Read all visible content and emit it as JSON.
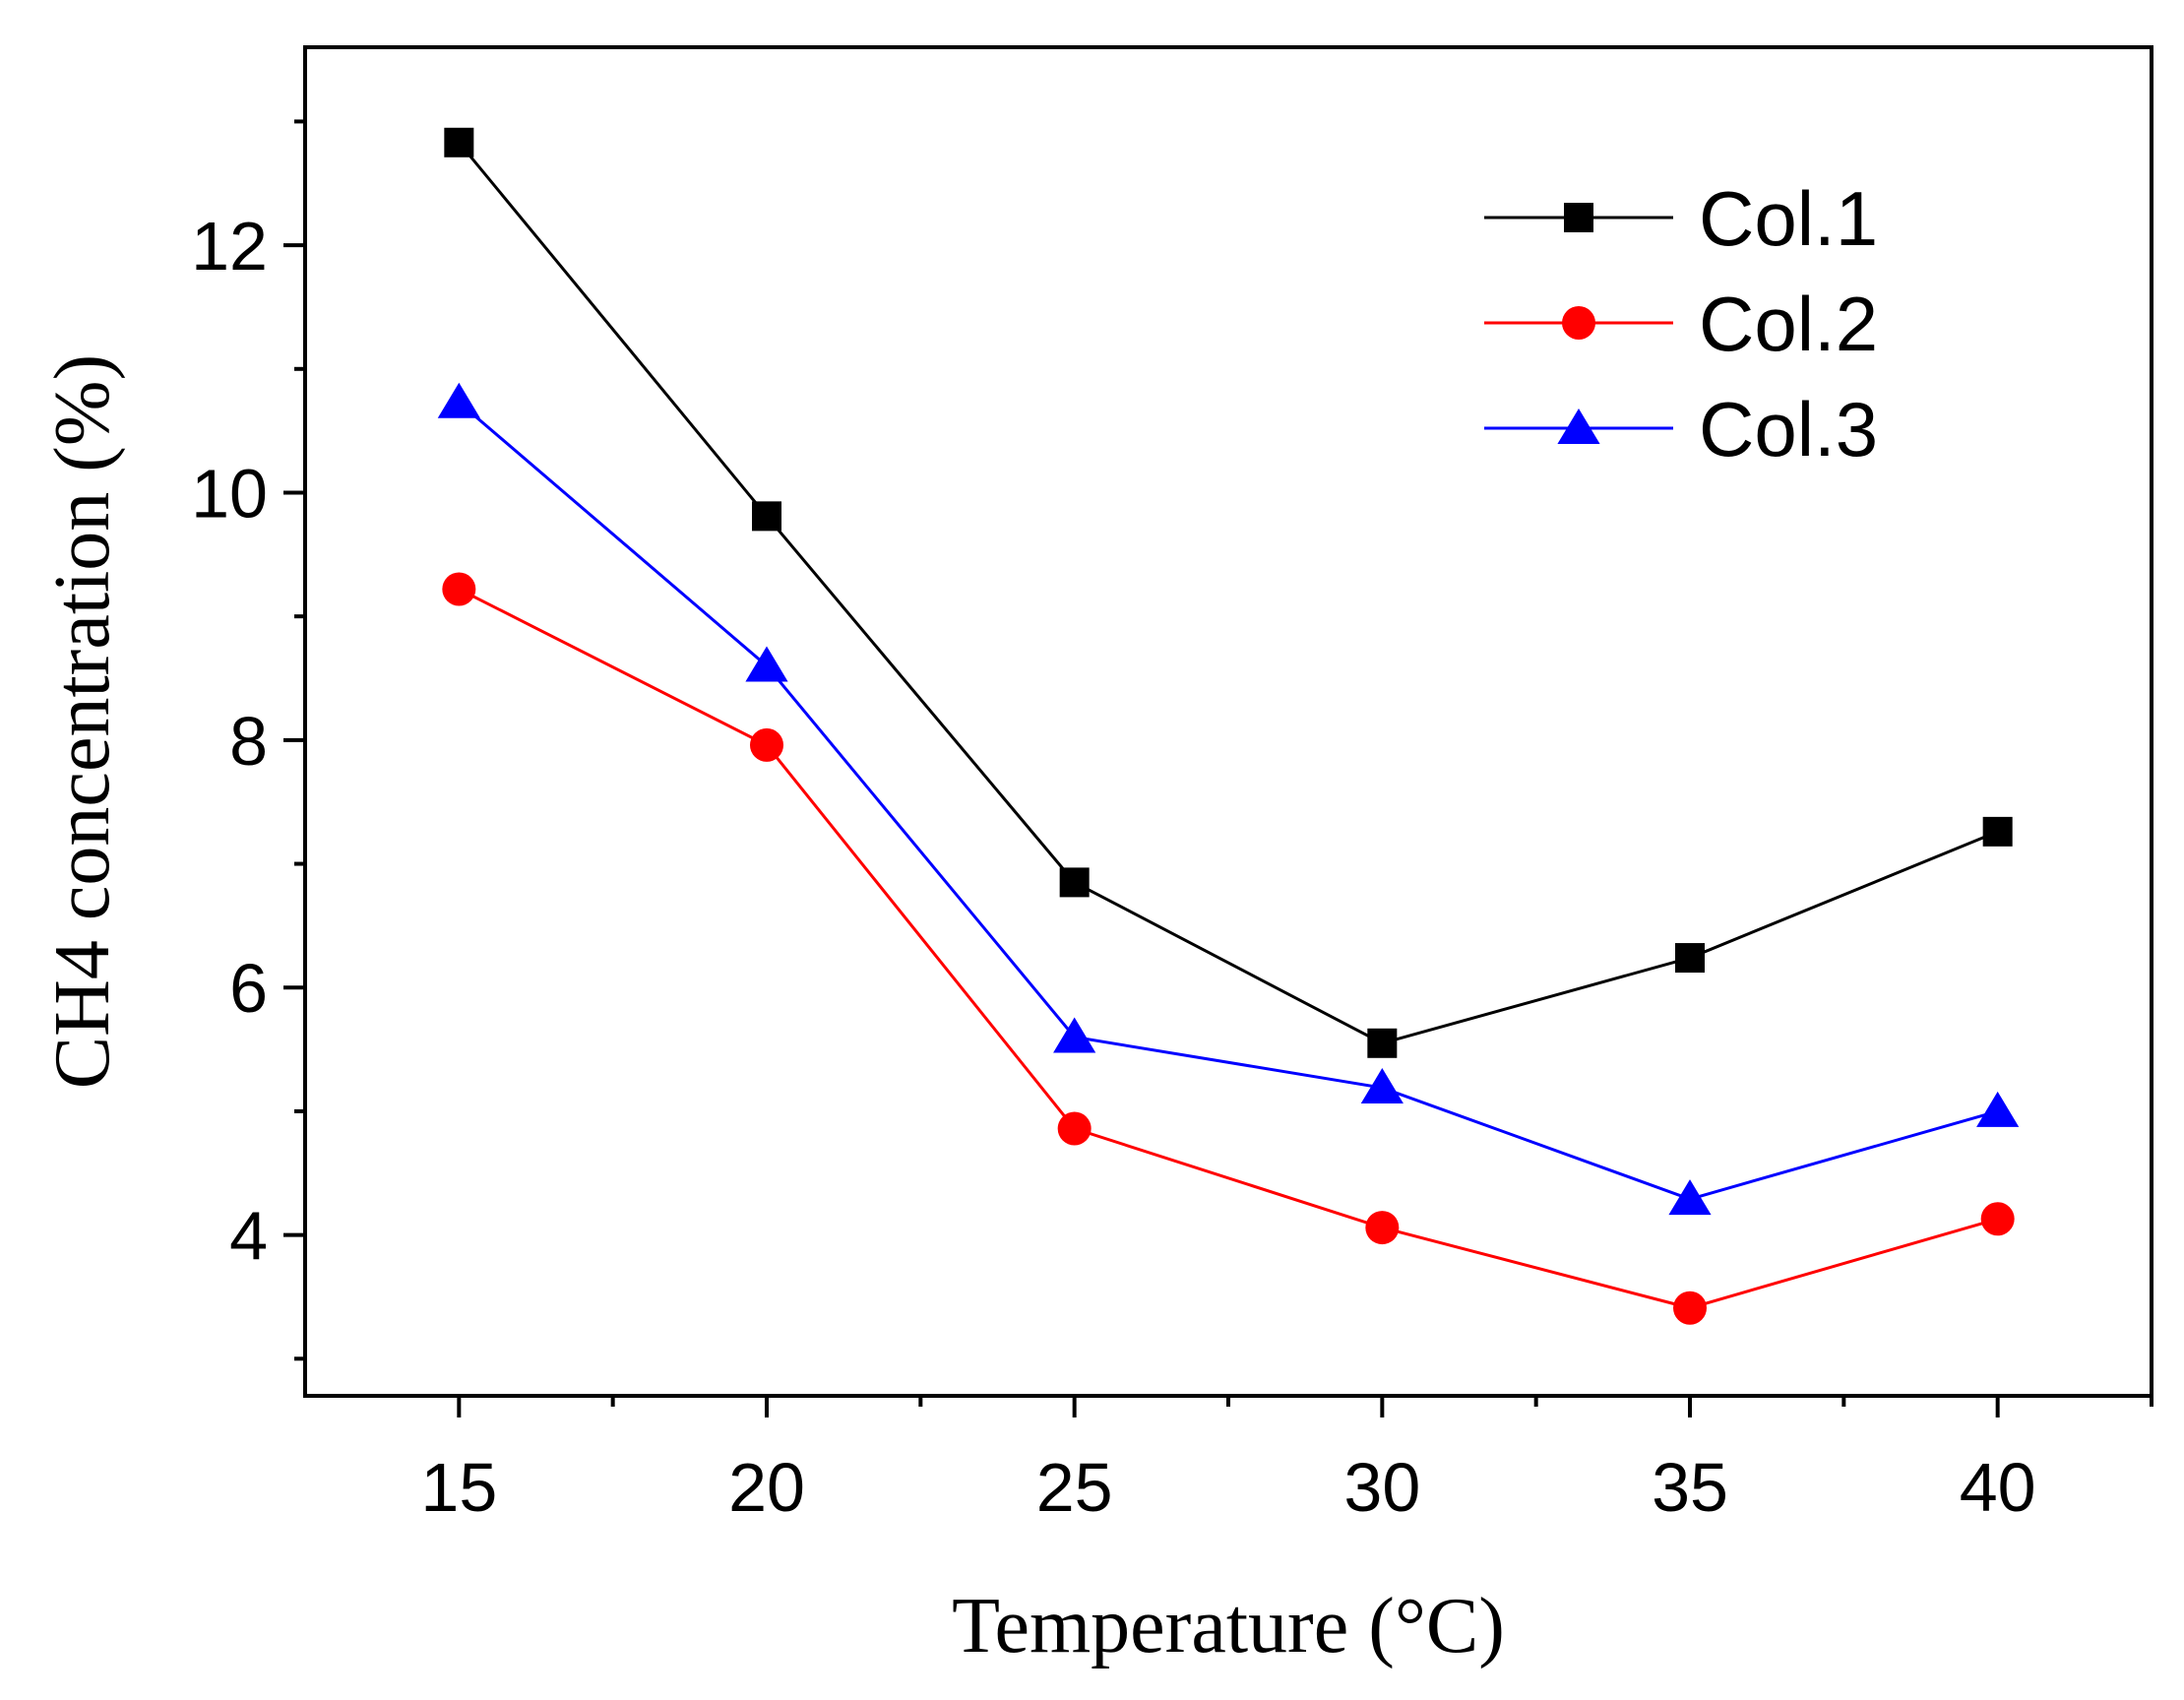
{
  "chart_data": {
    "type": "line",
    "title": "",
    "xlabel": "Temperature (°C)",
    "ylabel": "CH4 concentration (%)",
    "xlim": [
      12.5,
      42.5
    ],
    "ylim": [
      2.7,
      13.6
    ],
    "x_ticks": [
      15,
      20,
      25,
      30,
      35,
      40
    ],
    "y_ticks": [
      4,
      6,
      8,
      10,
      12
    ],
    "x_minor_step": 2.5,
    "y_minor_step": 1,
    "grid": false,
    "legend_position": "top-right",
    "x": [
      15,
      20,
      25,
      30,
      35,
      40
    ],
    "series": [
      {
        "name": "Col.1",
        "color": "#000000",
        "marker": "square",
        "values": [
          12.83,
          9.81,
          6.85,
          5.55,
          6.24,
          7.26
        ]
      },
      {
        "name": "Col.2",
        "color": "#ff0000",
        "marker": "circle",
        "values": [
          9.22,
          7.96,
          4.86,
          4.06,
          3.41,
          4.13
        ]
      },
      {
        "name": "Col.3",
        "color": "#0000ff",
        "marker": "triangle",
        "values": [
          10.73,
          8.6,
          5.6,
          5.19,
          4.29,
          5.0
        ]
      }
    ]
  }
}
